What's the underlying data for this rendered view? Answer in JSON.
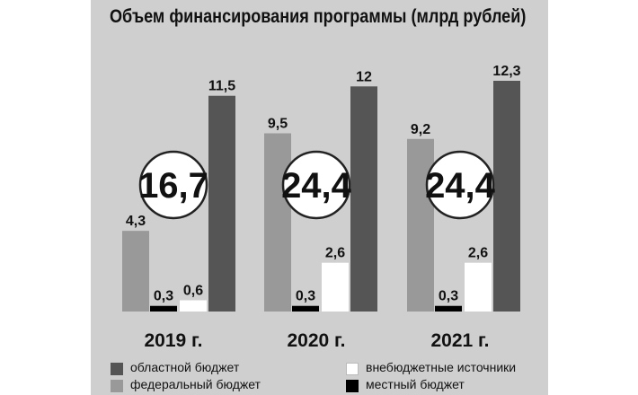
{
  "chart_data": {
    "type": "bar",
    "title": "Объем финансирования программы (млрд рублей)",
    "categories": [
      "2019 г.",
      "2020 г.",
      "2021 г."
    ],
    "totals": [
      "16,7",
      "24,4",
      "24,4"
    ],
    "series": [
      {
        "name": "федеральный бюджет",
        "color": "#999999",
        "values": [
          4.3,
          9.5,
          9.2
        ],
        "labels": [
          "4,3",
          "9,5",
          "9,2"
        ]
      },
      {
        "name": "местный бюджет",
        "color": "#000000",
        "values": [
          0.3,
          0.3,
          0.3
        ],
        "labels": [
          "0,3",
          "0,3",
          "0,3"
        ]
      },
      {
        "name": "внебюджетные источники",
        "color": "#ffffff",
        "values": [
          0.6,
          2.6,
          2.6
        ],
        "labels": [
          "0,6",
          "2,6",
          "2,6"
        ]
      },
      {
        "name": "областной бюджет",
        "color": "#555555",
        "values": [
          11.5,
          12,
          12.3
        ],
        "labels": [
          "11,5",
          "12",
          "12,3"
        ]
      }
    ],
    "legend": [
      {
        "series": 3,
        "label": "областной бюджет"
      },
      {
        "series": 2,
        "label": "внебюджетные источники"
      },
      {
        "series": 0,
        "label": "федеральный бюджет"
      },
      {
        "series": 1,
        "label": "местный бюджет"
      }
    ]
  }
}
